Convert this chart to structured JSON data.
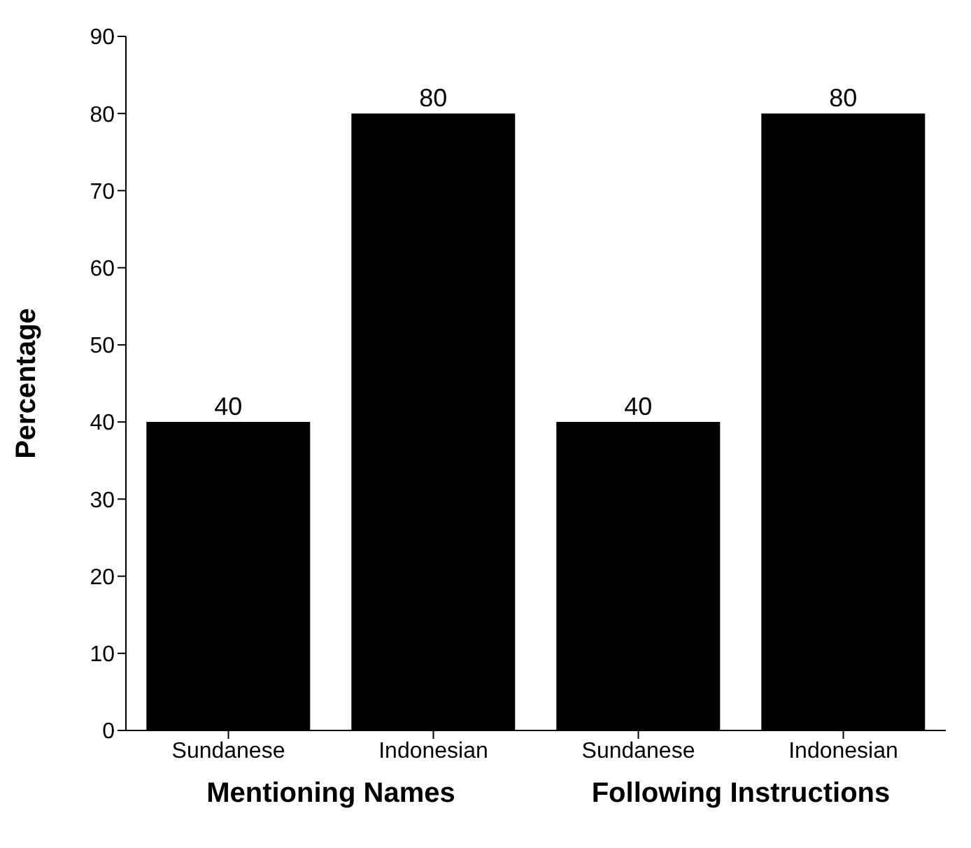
{
  "chart_data": {
    "type": "bar",
    "ylabel": "Percentage",
    "categories": [
      "Sundanese",
      "Indonesian",
      "Sundanese",
      "Indonesian"
    ],
    "values": [
      40,
      80,
      40,
      80
    ],
    "color": "#000000",
    "ylim": [
      0,
      90
    ],
    "yticks": [
      0,
      10,
      20,
      30,
      40,
      50,
      60,
      70,
      80,
      90
    ],
    "data_labels": true,
    "annotations": [
      "Mentioning Names",
      "Following Instructions"
    ]
  }
}
